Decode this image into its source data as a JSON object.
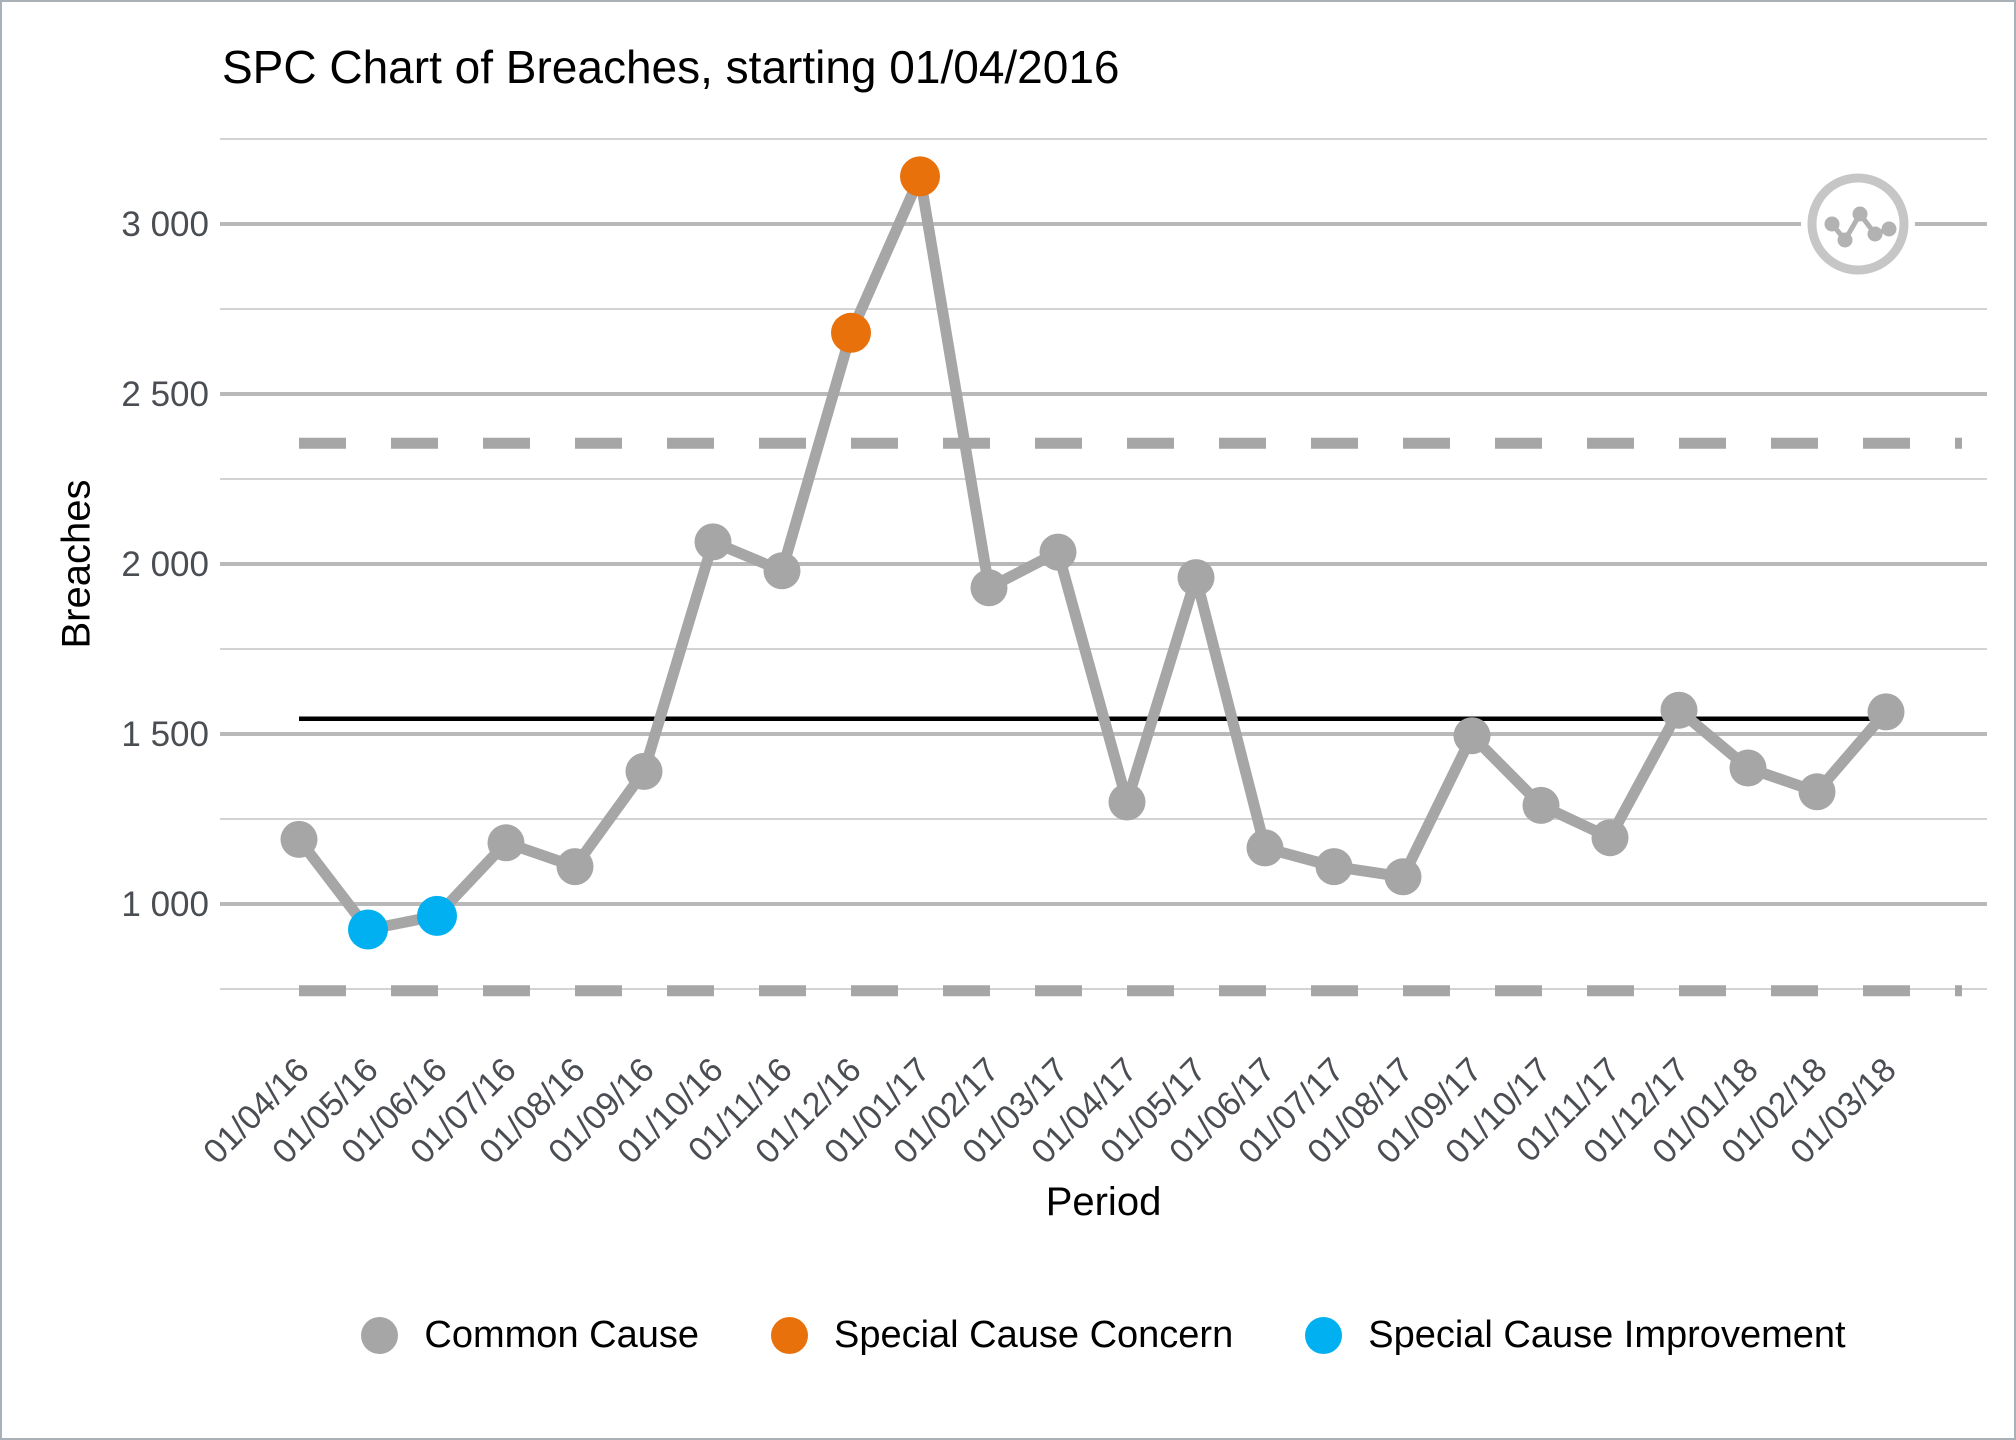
{
  "window": {
    "border_color": "#a9b0b6",
    "background": "#ffffff"
  },
  "chart_data": {
    "type": "line",
    "title": "SPC Chart of Breaches, starting 01/04/2016",
    "xlabel": "Period",
    "ylabel": "Breaches",
    "grid": true,
    "legend_position": "bottom",
    "categories": [
      "01/04/16",
      "01/05/16",
      "01/06/16",
      "01/07/16",
      "01/08/16",
      "01/09/16",
      "01/10/16",
      "01/11/16",
      "01/12/16",
      "01/01/17",
      "01/02/17",
      "01/03/17",
      "01/04/17",
      "01/05/17",
      "01/06/17",
      "01/07/17",
      "01/08/17",
      "01/09/17",
      "01/10/17",
      "01/11/17",
      "01/12/17",
      "01/01/18",
      "01/02/18",
      "01/03/18"
    ],
    "series": [
      {
        "name": "Breaches",
        "values": [
          1190,
          925,
          965,
          1180,
          1110,
          1390,
          2065,
          1980,
          2680,
          3140,
          1930,
          2035,
          1300,
          1960,
          1165,
          1110,
          1080,
          1495,
          1290,
          1195,
          1570,
          1400,
          1330,
          1565
        ]
      }
    ],
    "point_types": [
      "common",
      "improvement",
      "improvement",
      "common",
      "common",
      "common",
      "common",
      "common",
      "concern",
      "concern",
      "common",
      "common",
      "common",
      "common",
      "common",
      "common",
      "common",
      "common",
      "common",
      "common",
      "common",
      "common",
      "common",
      "common"
    ],
    "mean": 1545,
    "upper_control_limit": 2355,
    "lower_control_limit": 745,
    "ylim": [
      650,
      3350
    ],
    "yticks": [
      {
        "value": 1000,
        "label": "1 000"
      },
      {
        "value": 1500,
        "label": "1 500"
      },
      {
        "value": 2000,
        "label": "2 000"
      },
      {
        "value": 2500,
        "label": "2 500"
      },
      {
        "value": 3000,
        "label": "3 000"
      }
    ],
    "yticks_minor": [
      750,
      1250,
      1750,
      2250,
      2750,
      3250
    ],
    "colors": {
      "common": "#a6a6a6",
      "concern": "#e8710c",
      "improvement": "#00b0f0",
      "line": "#a6a6a6",
      "mean_line": "#000000",
      "limit_line": "#a6a6a6",
      "grid_major": "#b9b9b9",
      "grid_minor": "#d3d3d3",
      "tick_text": "#4a4e53",
      "icon_ring": "#c6c6c6",
      "icon_glyph": "#b2b2b2"
    }
  },
  "legend": {
    "items": [
      {
        "label": "Common Cause",
        "color": "#a6a6a6",
        "type": "common"
      },
      {
        "label": "Special Cause Concern",
        "color": "#e8710c",
        "type": "concern"
      },
      {
        "label": "Special Cause Improvement",
        "color": "#00b0f0",
        "type": "improvement"
      }
    ]
  },
  "corner_icon": "line-chart-icon"
}
